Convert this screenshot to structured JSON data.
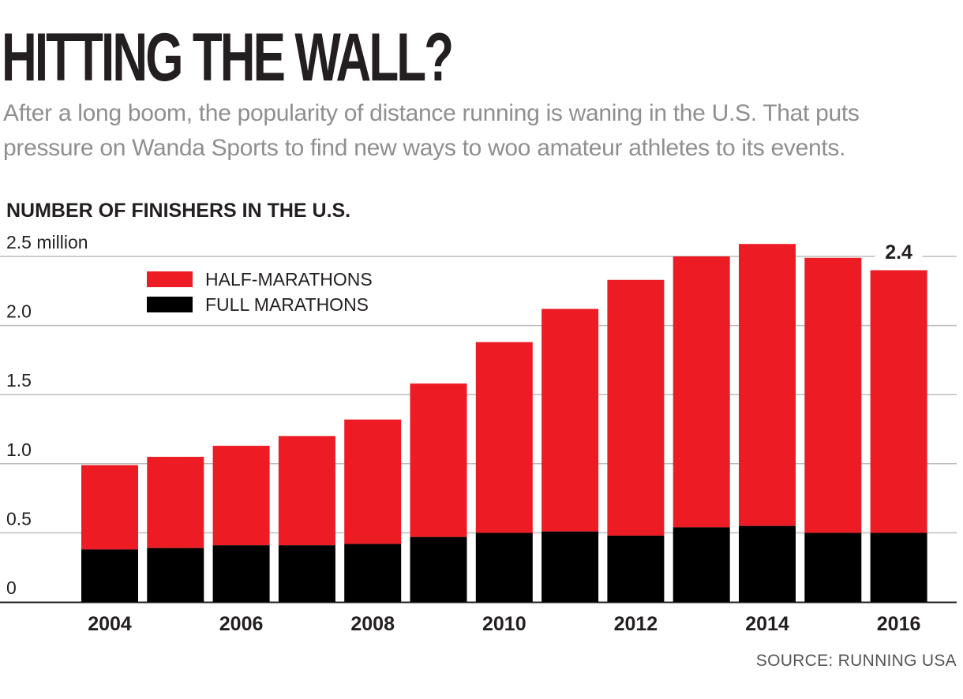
{
  "headline": "HITTING THE WALL?",
  "subheadline": "After a long boom, the popularity of distance running is waning in the U.S. That puts pressure on Wanda Sports to find new ways to woo amateur athletes to its events.",
  "source": "SOURCE: RUNNING USA",
  "colors": {
    "half": "#ed1c24",
    "full": "#000000",
    "grid": "#bdbdbd",
    "text": "#231f20"
  },
  "chart_data": {
    "type": "bar",
    "stacked": true,
    "title": "NUMBER OF FINISHERS IN THE U.S.",
    "x": [
      2004,
      2005,
      2006,
      2007,
      2008,
      2009,
      2010,
      2011,
      2012,
      2013,
      2014,
      2015,
      2016
    ],
    "x_tick_labels": [
      "2004",
      "2006",
      "2008",
      "2010",
      "2012",
      "2014",
      "2016"
    ],
    "y_tick_labels": [
      "0",
      "0.5",
      "1.0",
      "1.5",
      "2.0",
      "2.5 million"
    ],
    "ylim": [
      0,
      2.5
    ],
    "grid": true,
    "legend_position": "top-left",
    "series": [
      {
        "name": "FULL MARATHONS",
        "color": "#000000",
        "values": [
          0.38,
          0.39,
          0.41,
          0.41,
          0.42,
          0.47,
          0.5,
          0.51,
          0.48,
          0.54,
          0.55,
          0.5,
          0.5
        ]
      },
      {
        "name": "HALF-MARATHONS",
        "color": "#ed1c24",
        "values": [
          0.61,
          0.66,
          0.72,
          0.79,
          0.9,
          1.11,
          1.38,
          1.61,
          1.85,
          1.96,
          2.04,
          1.99,
          1.9
        ]
      }
    ],
    "annotations": [
      {
        "x": 2016,
        "label": "2.4"
      }
    ]
  }
}
